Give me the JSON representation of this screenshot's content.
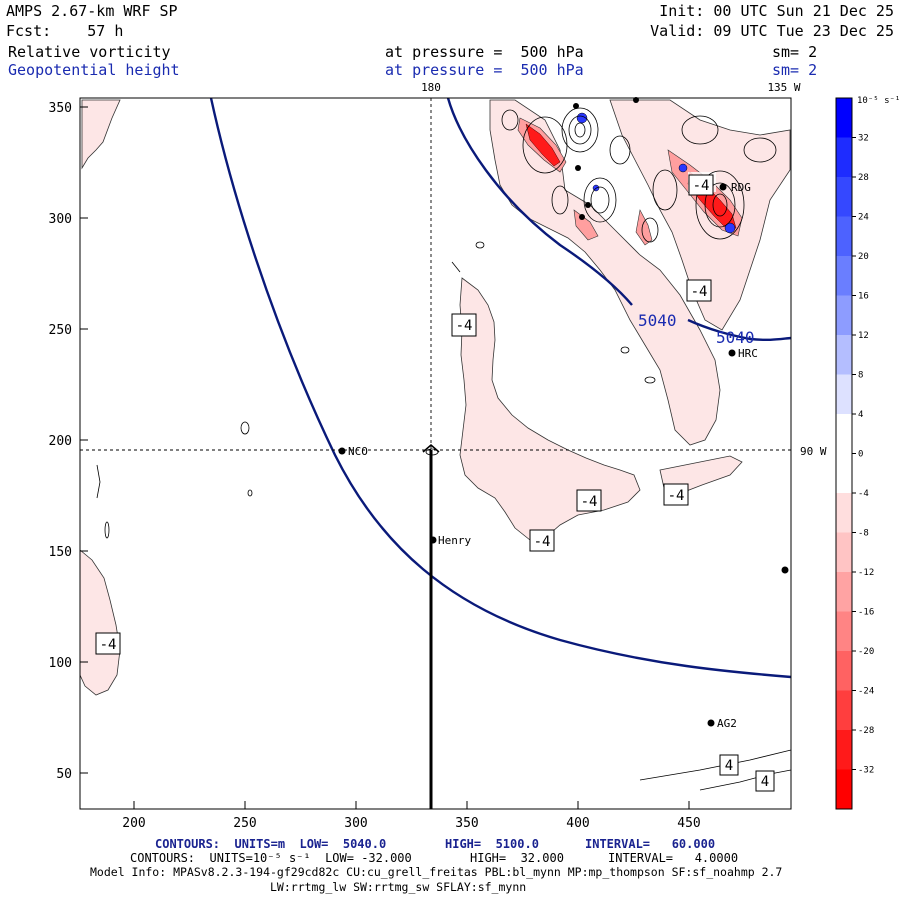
{
  "header": {
    "model": "AMPS 2.67-km WRF SP",
    "init": "Init: 00 UTC Sun 21 Dec 25",
    "fcst": "Fcst:    57 h",
    "valid": "Valid: 09 UTC Tue 23 Dec 25",
    "field1": {
      "name": "Relative vorticity",
      "level": "at pressure =  500 hPa",
      "sm": "sm= 2"
    },
    "field2": {
      "name": "Geopotential height",
      "level": "at pressure =  500 hPa",
      "sm": "sm= 2"
    }
  },
  "map": {
    "x_ticks": [
      "200",
      "250",
      "300",
      "350",
      "400",
      "450"
    ],
    "y_ticks": [
      "350",
      "300",
      "250",
      "200",
      "150",
      "100",
      "50"
    ],
    "lon_labels": {
      "top_180": "180",
      "top_135w": "135 W",
      "right_90w": "90 W"
    },
    "stations": [
      {
        "id": "NCO",
        "label": "NCO"
      },
      {
        "id": "Henry",
        "label": "Henry"
      },
      {
        "id": "HRC",
        "label": "HRC"
      },
      {
        "id": "AG2",
        "label": "AG2"
      },
      {
        "id": "RDG",
        "label": "RDG"
      }
    ],
    "height_contour_labels": [
      "5040",
      "5040"
    ],
    "vorticity_labels": [
      "-4",
      "-4",
      "-4",
      "-4",
      "-4",
      "-4",
      "-4",
      "4",
      "4"
    ],
    "colors": {
      "height_contour": "#0a1a7a",
      "pos_vort": "#0010ff",
      "neg_vort": "#ff1010",
      "light_neg": "#fde6e6"
    }
  },
  "colorbar": {
    "unit": "10⁻⁵ s⁻¹",
    "labels": [
      "32",
      "28",
      "24",
      "20",
      "16",
      "12",
      "8",
      "4",
      "0",
      "-4",
      "-8",
      "-12",
      "-16",
      "-20",
      "-24",
      "-28",
      "-32"
    ],
    "colors": [
      "#0000ff",
      "#1e2cff",
      "#3548ff",
      "#4d62ff",
      "#6a7eff",
      "#8d9cff",
      "#b4beff",
      "#dde1ff",
      "#ffffff",
      "#ffffff",
      "#ffdede",
      "#ffc4c4",
      "#ffa3a3",
      "#ff8484",
      "#ff6262",
      "#ff3e3e",
      "#ff1a1a",
      "#ff0000"
    ]
  },
  "footer": {
    "line1": {
      "prefix": "CONTOURS:  UNITS=m  LOW=  5040.0",
      "high": "HIGH=  5100.0",
      "interval": "INTERVAL=   60.000"
    },
    "line2": {
      "prefix": "CONTOURS:  UNITS=10⁻⁵ s⁻¹  LOW= -32.000",
      "high": "HIGH=  32.000",
      "interval": "INTERVAL=   4.0000"
    },
    "model_info": "Model Info: MPASv8.2.3-194-gf29cd82c CU:cu_grell_freitas PBL:bl_mynn MP:mp_thompson SF:sf_noahmp 2.7",
    "model_info2": "LW:rrtmg_lw SW:rrtmg_sw SFLAY:sf_mynn"
  }
}
